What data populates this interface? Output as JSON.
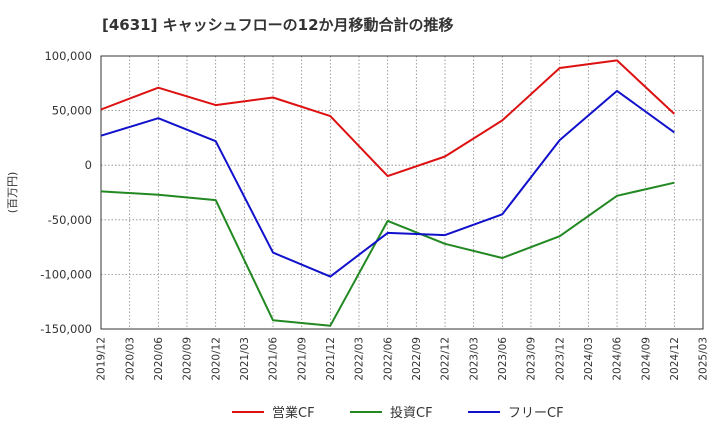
{
  "chart_data": {
    "type": "line",
    "title": "[4631]  キャッシュフローの12か月移動合計の推移",
    "xlabel": "",
    "ylabel": "(百万円)",
    "ylim": [
      -150000,
      100000
    ],
    "yticks": [
      100000,
      50000,
      0,
      -50000,
      -100000,
      -150000
    ],
    "ytick_labels": [
      "100,000",
      "50,000",
      "0",
      "-50,000",
      "-100,000",
      "-150,000"
    ],
    "x_ticks": [
      "2019/12",
      "2020/03",
      "2020/06",
      "2020/09",
      "2020/12",
      "2021/03",
      "2021/06",
      "2021/09",
      "2021/12",
      "2022/03",
      "2022/06",
      "2022/09",
      "2022/12",
      "2023/03",
      "2023/06",
      "2023/09",
      "2023/12",
      "2024/03",
      "2024/06",
      "2024/09",
      "2024/12",
      "2025/03"
    ],
    "grid": true,
    "legend_position": "bottom",
    "series": [
      {
        "name": "営業CF",
        "color": "#dd1111",
        "points": [
          {
            "x": "2019/12",
            "y": 51000
          },
          {
            "x": "2020/06",
            "y": 71000
          },
          {
            "x": "2020/12",
            "y": 55000
          },
          {
            "x": "2021/06",
            "y": 62000
          },
          {
            "x": "2021/12",
            "y": 45000
          },
          {
            "x": "2022/06",
            "y": -10000
          },
          {
            "x": "2022/12",
            "y": 8000
          },
          {
            "x": "2023/06",
            "y": 41000
          },
          {
            "x": "2023/12",
            "y": 89000
          },
          {
            "x": "2024/06",
            "y": 96000
          },
          {
            "x": "2024/12",
            "y": 47000
          }
        ]
      },
      {
        "name": "投資CF",
        "color": "#228822",
        "points": [
          {
            "x": "2019/12",
            "y": -24000
          },
          {
            "x": "2020/06",
            "y": -27000
          },
          {
            "x": "2020/12",
            "y": -32000
          },
          {
            "x": "2021/06",
            "y": -142000
          },
          {
            "x": "2021/12",
            "y": -147000
          },
          {
            "x": "2022/06",
            "y": -51000
          },
          {
            "x": "2022/12",
            "y": -72000
          },
          {
            "x": "2023/06",
            "y": -85000
          },
          {
            "x": "2023/12",
            "y": -65000
          },
          {
            "x": "2024/06",
            "y": -28000
          },
          {
            "x": "2024/12",
            "y": -16000
          }
        ]
      },
      {
        "name": "フリーCF",
        "color": "#1111cc",
        "points": [
          {
            "x": "2019/12",
            "y": 27000
          },
          {
            "x": "2020/06",
            "y": 43000
          },
          {
            "x": "2020/12",
            "y": 22000
          },
          {
            "x": "2021/06",
            "y": -80000
          },
          {
            "x": "2021/12",
            "y": -102000
          },
          {
            "x": "2022/06",
            "y": -62000
          },
          {
            "x": "2022/12",
            "y": -64000
          },
          {
            "x": "2023/06",
            "y": -45000
          },
          {
            "x": "2023/12",
            "y": 23000
          },
          {
            "x": "2024/06",
            "y": 68000
          },
          {
            "x": "2024/12",
            "y": 30000
          }
        ]
      }
    ]
  }
}
